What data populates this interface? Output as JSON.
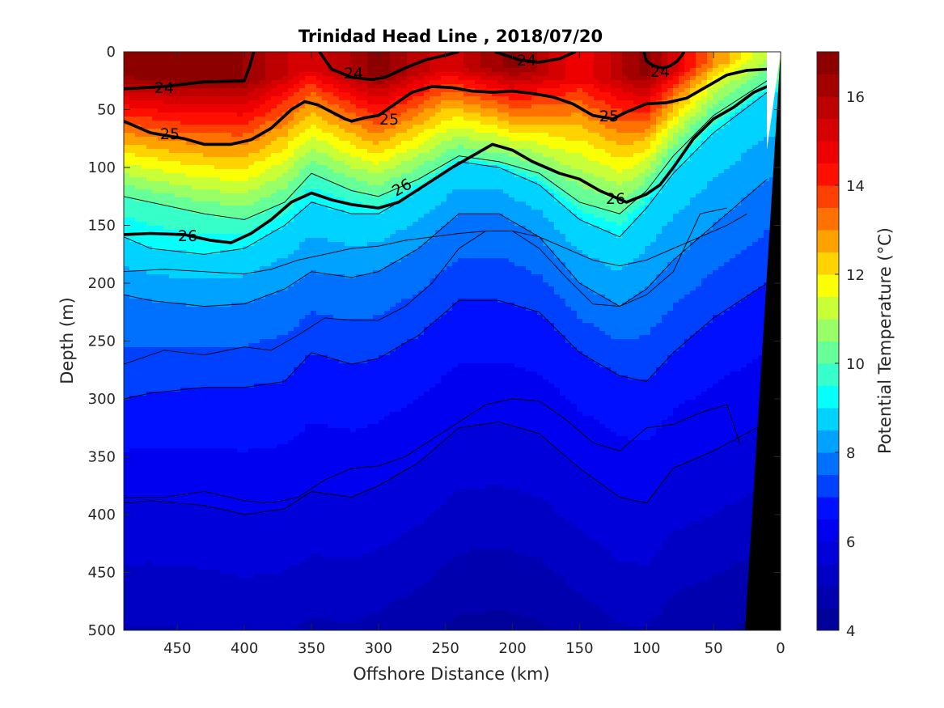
{
  "chart_data": {
    "type": "contourf",
    "title": "Trinidad Head Line , 2018/07/20",
    "xlabel": "Offshore Distance (km)",
    "ylabel": "Depth (m)",
    "colorbar_label": "Potential Temperature (°C)",
    "xlim": [
      490,
      0
    ],
    "ylim": [
      0,
      500
    ],
    "clim": [
      4,
      17
    ],
    "xticks": [
      450,
      400,
      350,
      300,
      250,
      200,
      150,
      100,
      50,
      0
    ],
    "yticks": [
      0,
      50,
      100,
      150,
      200,
      250,
      300,
      350,
      400,
      450,
      500
    ],
    "colorbar_ticks": [
      4,
      6,
      8,
      10,
      12,
      14,
      16
    ],
    "colors": {
      "jet": [
        "#00008f",
        "#0000ff",
        "#00ffff",
        "#ffff00",
        "#ff0000",
        "#800000"
      ],
      "bathymetry": "#000000",
      "isopycnal": "#000000"
    },
    "surface_temperature_profile": {
      "x": [
        490,
        450,
        400,
        350,
        300,
        250,
        200,
        150,
        100,
        50,
        10
      ],
      "t0": [
        16.8,
        16.8,
        16.5,
        15.0,
        16.8,
        15.0,
        16.8,
        14.5,
        16.8,
        13.0,
        11.0
      ],
      "tc_depth": [
        55,
        70,
        78,
        45,
        60,
        45,
        40,
        75,
        55,
        30,
        15
      ]
    },
    "temperature_isotherms": [
      {
        "temp": 10,
        "x": [
          490,
          470,
          430,
          400,
          370,
          350,
          320,
          300,
          270,
          240,
          210,
          180,
          150,
          120,
          100,
          80,
          50,
          10
        ],
        "depth": [
          125,
          130,
          140,
          145,
          130,
          105,
          120,
          125,
          110,
          90,
          95,
          105,
          130,
          140,
          120,
          90,
          55,
          25
        ]
      },
      {
        "temp": 9,
        "x": [
          490,
          470,
          430,
          400,
          370,
          350,
          320,
          300,
          270,
          240,
          210,
          180,
          150,
          120,
          100,
          80,
          50,
          10
        ],
        "depth": [
          160,
          170,
          175,
          170,
          150,
          130,
          140,
          140,
          120,
          95,
          100,
          115,
          145,
          160,
          135,
          105,
          70,
          35
        ]
      },
      {
        "temp": 8,
        "x": [
          490,
          470,
          430,
          400,
          370,
          350,
          320,
          300,
          270,
          240,
          210,
          180,
          150,
          120,
          100,
          80,
          50,
          10
        ],
        "depth": [
          210,
          215,
          220,
          218,
          205,
          190,
          195,
          190,
          170,
          140,
          140,
          160,
          200,
          220,
          205,
          180,
          150,
          110
        ]
      },
      {
        "temp": 7,
        "x": [
          490,
          470,
          430,
          400,
          370,
          350,
          320,
          300,
          270,
          240,
          210,
          180,
          150,
          120,
          100,
          80,
          50,
          10
        ],
        "depth": [
          300,
          295,
          290,
          290,
          285,
          260,
          270,
          265,
          245,
          215,
          215,
          225,
          260,
          280,
          285,
          260,
          230,
          200
        ]
      },
      {
        "temp": 6,
        "x": [
          490,
          470,
          430,
          400,
          370,
          350,
          320,
          300,
          270,
          240,
          210,
          180,
          150,
          120,
          100,
          80,
          50,
          10
        ],
        "depth": [
          390,
          388,
          392,
          400,
          395,
          380,
          385,
          375,
          355,
          325,
          320,
          330,
          360,
          385,
          390,
          360,
          345,
          320
        ]
      }
    ],
    "isopycnals": [
      {
        "label": "24",
        "x": [
          490,
          460,
          430,
          400,
          396,
          393
        ],
        "depth": [
          32,
          30,
          26,
          25,
          12,
          0
        ]
      },
      {
        "label": "24",
        "x": [
          344,
          335,
          320,
          305,
          295,
          280,
          265,
          250,
          240
        ],
        "depth": [
          0,
          15,
          22,
          24,
          22,
          14,
          7,
          3,
          0
        ]
      },
      {
        "label": "24",
        "x": [
          213,
          195,
          180,
          165,
          153
        ],
        "depth": [
          0,
          7,
          9,
          6,
          0
        ]
      },
      {
        "label": "24",
        "x": [
          102,
          100,
          95,
          88,
          82,
          77,
          73,
          72
        ],
        "depth": [
          0,
          8,
          12,
          14,
          12,
          8,
          2,
          0
        ]
      },
      {
        "label": "25",
        "x": [
          490,
          470,
          445,
          430,
          410,
          395,
          380,
          365,
          355,
          345,
          335,
          325,
          320,
          310,
          300,
          290,
          275,
          260,
          245,
          230,
          215,
          200,
          185,
          170,
          155,
          140,
          125,
          115,
          100,
          85,
          70,
          55,
          40,
          25,
          10
        ],
        "depth": [
          60,
          70,
          75,
          80,
          80,
          76,
          66,
          50,
          43,
          46,
          52,
          58,
          60,
          57,
          55,
          47,
          35,
          30,
          31,
          34,
          35,
          34,
          36,
          39,
          45,
          55,
          58,
          52,
          45,
          44,
          40,
          30,
          20,
          16,
          15
        ]
      },
      {
        "label": "26",
        "x": [
          490,
          470,
          445,
          425,
          410,
          395,
          380,
          365,
          350,
          335,
          320,
          300,
          285,
          265,
          245,
          230,
          215,
          200,
          185,
          165,
          150,
          135,
          115,
          100,
          90,
          80,
          65,
          50,
          35,
          20,
          10
        ],
        "depth": [
          158,
          157,
          158,
          163,
          165,
          157,
          145,
          130,
          122,
          128,
          132,
          135,
          130,
          115,
          100,
          90,
          80,
          85,
          95,
          105,
          110,
          120,
          130,
          123,
          115,
          100,
          75,
          58,
          48,
          35,
          30
        ]
      }
    ],
    "thin_contours": [
      {
        "x": [
          490,
          460,
          430,
          400,
          380,
          360,
          340,
          320,
          300,
          280,
          260,
          240,
          220,
          200,
          180,
          160,
          140,
          120,
          100,
          80,
          60,
          40,
          25
        ],
        "depth": [
          190,
          188,
          190,
          192,
          188,
          180,
          175,
          170,
          168,
          163,
          160,
          157,
          155,
          155,
          160,
          170,
          180,
          185,
          180,
          170,
          160,
          150,
          140
        ]
      },
      {
        "x": [
          490,
          460,
          430,
          400,
          380,
          360,
          340,
          320,
          300,
          280,
          260,
          240,
          220,
          200,
          180,
          160,
          140,
          120,
          100,
          80,
          60,
          40
        ],
        "depth": [
          270,
          258,
          262,
          255,
          258,
          245,
          230,
          232,
          232,
          220,
          200,
          170,
          155,
          155,
          170,
          195,
          218,
          220,
          210,
          190,
          140,
          135
        ]
      },
      {
        "x": [
          490,
          460,
          430,
          400,
          380,
          360,
          340,
          320,
          300,
          280,
          260,
          240,
          220,
          200,
          180,
          160,
          140,
          120,
          100,
          80,
          60,
          40,
          30
        ],
        "depth": [
          385,
          385,
          380,
          388,
          390,
          385,
          370,
          360,
          358,
          350,
          335,
          320,
          305,
          300,
          302,
          318,
          338,
          345,
          325,
          322,
          312,
          305,
          340
        ]
      }
    ],
    "contour_labels": [
      "24",
      "24",
      "24",
      "24",
      "25",
      "25",
      "25",
      "26",
      "26",
      "26"
    ]
  }
}
